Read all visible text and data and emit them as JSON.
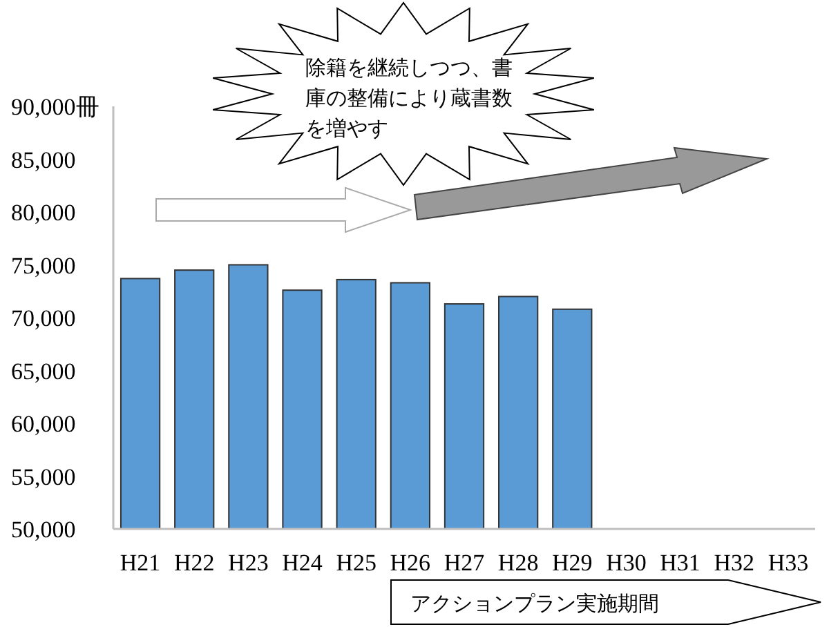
{
  "chart_data": {
    "type": "bar",
    "categories": [
      "H21",
      "H22",
      "H23",
      "H24",
      "H25",
      "H26",
      "H27",
      "H28",
      "H29",
      "H30",
      "H31",
      "H32",
      "H33"
    ],
    "values": [
      73700,
      74500,
      75000,
      72600,
      73600,
      73300,
      71300,
      72000,
      70800,
      null,
      null,
      null,
      null
    ],
    "color": "#5b9bd5",
    "ylim": [
      50000,
      90000
    ],
    "yticks": [
      {
        "value": 50000,
        "label": "50,000"
      },
      {
        "value": 55000,
        "label": "55,000"
      },
      {
        "value": 60000,
        "label": "60,000"
      },
      {
        "value": 65000,
        "label": "65,000"
      },
      {
        "value": 70000,
        "label": "70,000"
      },
      {
        "value": 75000,
        "label": "75,000"
      },
      {
        "value": 80000,
        "label": "80,000"
      },
      {
        "value": 85000,
        "label": "85,000"
      },
      {
        "value": 90000,
        "label": "90,000冊"
      }
    ],
    "annotations": [
      "除籍を継続しつつ、書庫の整備により蔵書数を増やす",
      "アクションプラン実施期間"
    ]
  }
}
